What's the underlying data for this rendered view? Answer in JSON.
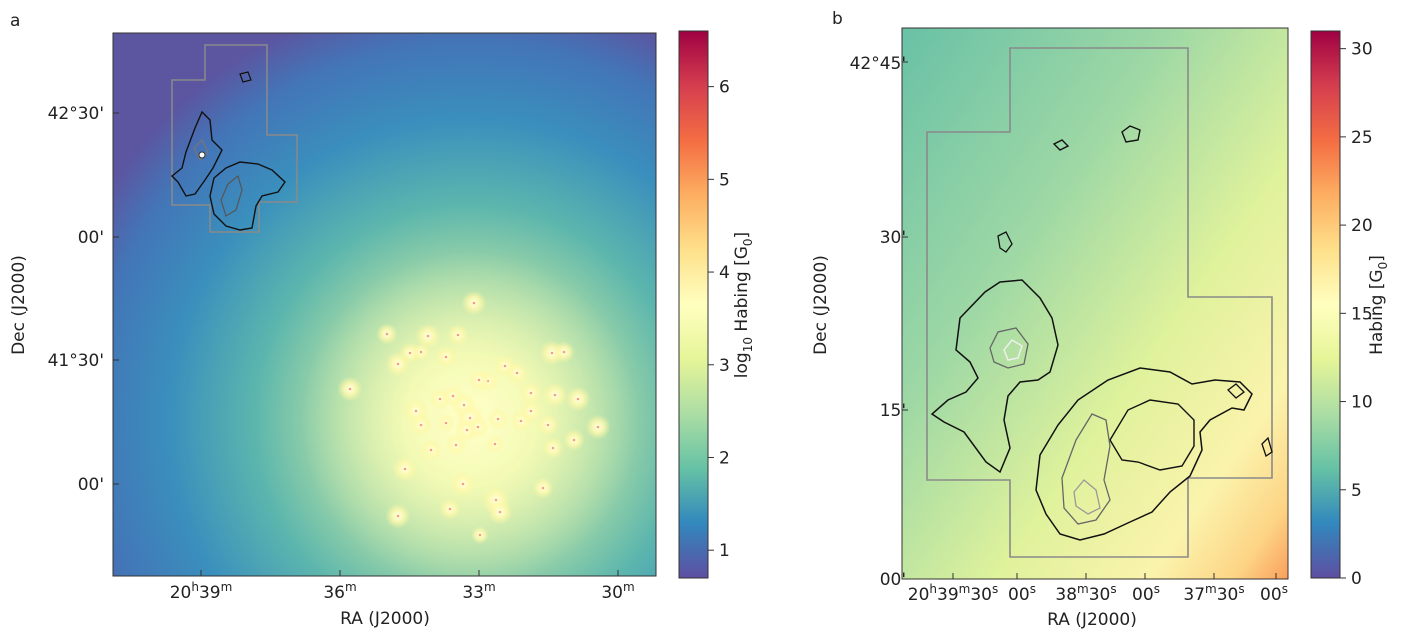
{
  "panels": {
    "a": {
      "label": "a",
      "xlabel": "RA (J2000)",
      "ylabel": "Dec (J2000)",
      "xticks": [
        {
          "h": "20",
          "hs": "h",
          "m": "39",
          "ms": "m"
        },
        {
          "m": "36",
          "ms": "m"
        },
        {
          "m": "33",
          "ms": "m"
        },
        {
          "m": "30",
          "ms": "m"
        }
      ],
      "yticks": [
        "42°30'",
        "00'",
        "41°30'",
        "00'"
      ],
      "colorbar": {
        "label_prefix": "log",
        "label_sub": "10",
        "label_main": " Habing [G",
        "label_unit_sub": "0",
        "label_end": "]",
        "ticks": [
          "1",
          "2",
          "3",
          "4",
          "5",
          "6"
        ]
      }
    },
    "b": {
      "label": "b",
      "xlabel": "RA (J2000)",
      "ylabel": "Dec (J2000)",
      "xticks": [
        {
          "h": "20",
          "hs": "h",
          "m": "39",
          "ms": "m",
          "s": "30",
          "ss": "s"
        },
        {
          "s": "00",
          "ss": "s"
        },
        {
          "m": "38",
          "ms": "m",
          "s": "30",
          "ss": "s"
        },
        {
          "s": "00",
          "ss": "s"
        },
        {
          "m": "37",
          "ms": "m",
          "s": "30",
          "ss": "s"
        },
        {
          "s": "00",
          "ss": "s"
        }
      ],
      "yticks": [
        "42°45'",
        "30'",
        "15'",
        "00'"
      ],
      "colorbar": {
        "label_main": "Habing [G",
        "label_unit_sub": "0",
        "label_end": "]",
        "ticks": [
          "0",
          "5",
          "10",
          "15",
          "20",
          "25",
          "30"
        ]
      }
    }
  },
  "chart_data": [
    {
      "type": "heatmap",
      "panel": "a",
      "quantity": "log10 Habing [G0]",
      "colormap": "Spectral_r",
      "colorbar_range": [
        0.7,
        6.6
      ],
      "colorbar_ticks": [
        1,
        2,
        3,
        4,
        5,
        6
      ],
      "x_ticks": [
        "20h39m",
        "36m",
        "33m",
        "30m"
      ],
      "y_ticks": [
        "42°30'",
        "00'",
        "41°30'",
        "00'"
      ],
      "field_range_approx": [
        0.9,
        4.0
      ],
      "peak_region": "lower-right star cluster, values ~3.5–4",
      "colors": {
        "low": "#5e4fa2",
        "mid": "#66c2a5",
        "high": "#ffffbf",
        "top": "#9e0142"
      }
    },
    {
      "type": "heatmap",
      "panel": "b",
      "quantity": "Habing [G0]",
      "colormap": "Spectral_r",
      "colorbar_range": [
        0,
        31
      ],
      "colorbar_ticks": [
        0,
        5,
        10,
        15,
        20,
        25,
        30
      ],
      "x_ticks": [
        "20h39m30s",
        "00s",
        "38m30s",
        "00s",
        "37m30s",
        "00s"
      ],
      "y_ticks": [
        "42°45'",
        "30'",
        "15'",
        "00'"
      ],
      "field_range_approx": [
        6,
        20
      ],
      "gradient": "increases from upper-left (~7) to lower-right (~20)"
    }
  ]
}
